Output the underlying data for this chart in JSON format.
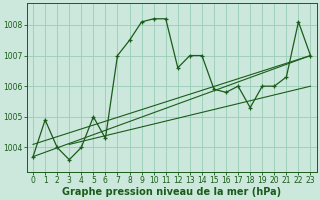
{
  "title": "Graphe pression niveau de la mer (hPa)",
  "bg_color": "#cce8dc",
  "grid_color": "#99ccb8",
  "line_color": "#1a5c1a",
  "xlim": [
    -0.5,
    23.5
  ],
  "ylim": [
    1003.2,
    1008.7
  ],
  "yticks": [
    1004,
    1005,
    1006,
    1007,
    1008
  ],
  "xticks": [
    0,
    1,
    2,
    3,
    4,
    5,
    6,
    7,
    8,
    9,
    10,
    11,
    12,
    13,
    14,
    15,
    16,
    17,
    18,
    19,
    20,
    21,
    22,
    23
  ],
  "main_data": [
    1003.7,
    1004.9,
    1004.0,
    1003.6,
    1004.0,
    1005.0,
    1004.3,
    1007.0,
    1007.5,
    1008.1,
    1008.2,
    1008.2,
    1006.6,
    1007.0,
    1007.0,
    1005.9,
    1005.8,
    1006.0,
    1005.3,
    1006.0,
    1006.0,
    1006.3,
    1008.1,
    1007.0
  ],
  "trend1_x": [
    0,
    23
  ],
  "trend1_y": [
    1004.1,
    1007.0
  ],
  "trend2_x": [
    0,
    23
  ],
  "trend2_y": [
    1003.7,
    1007.0
  ],
  "trend3_x": [
    3,
    23
  ],
  "trend3_y": [
    1004.1,
    1006.0
  ],
  "tick_fontsize": 5.5,
  "label_fontsize": 7.0
}
